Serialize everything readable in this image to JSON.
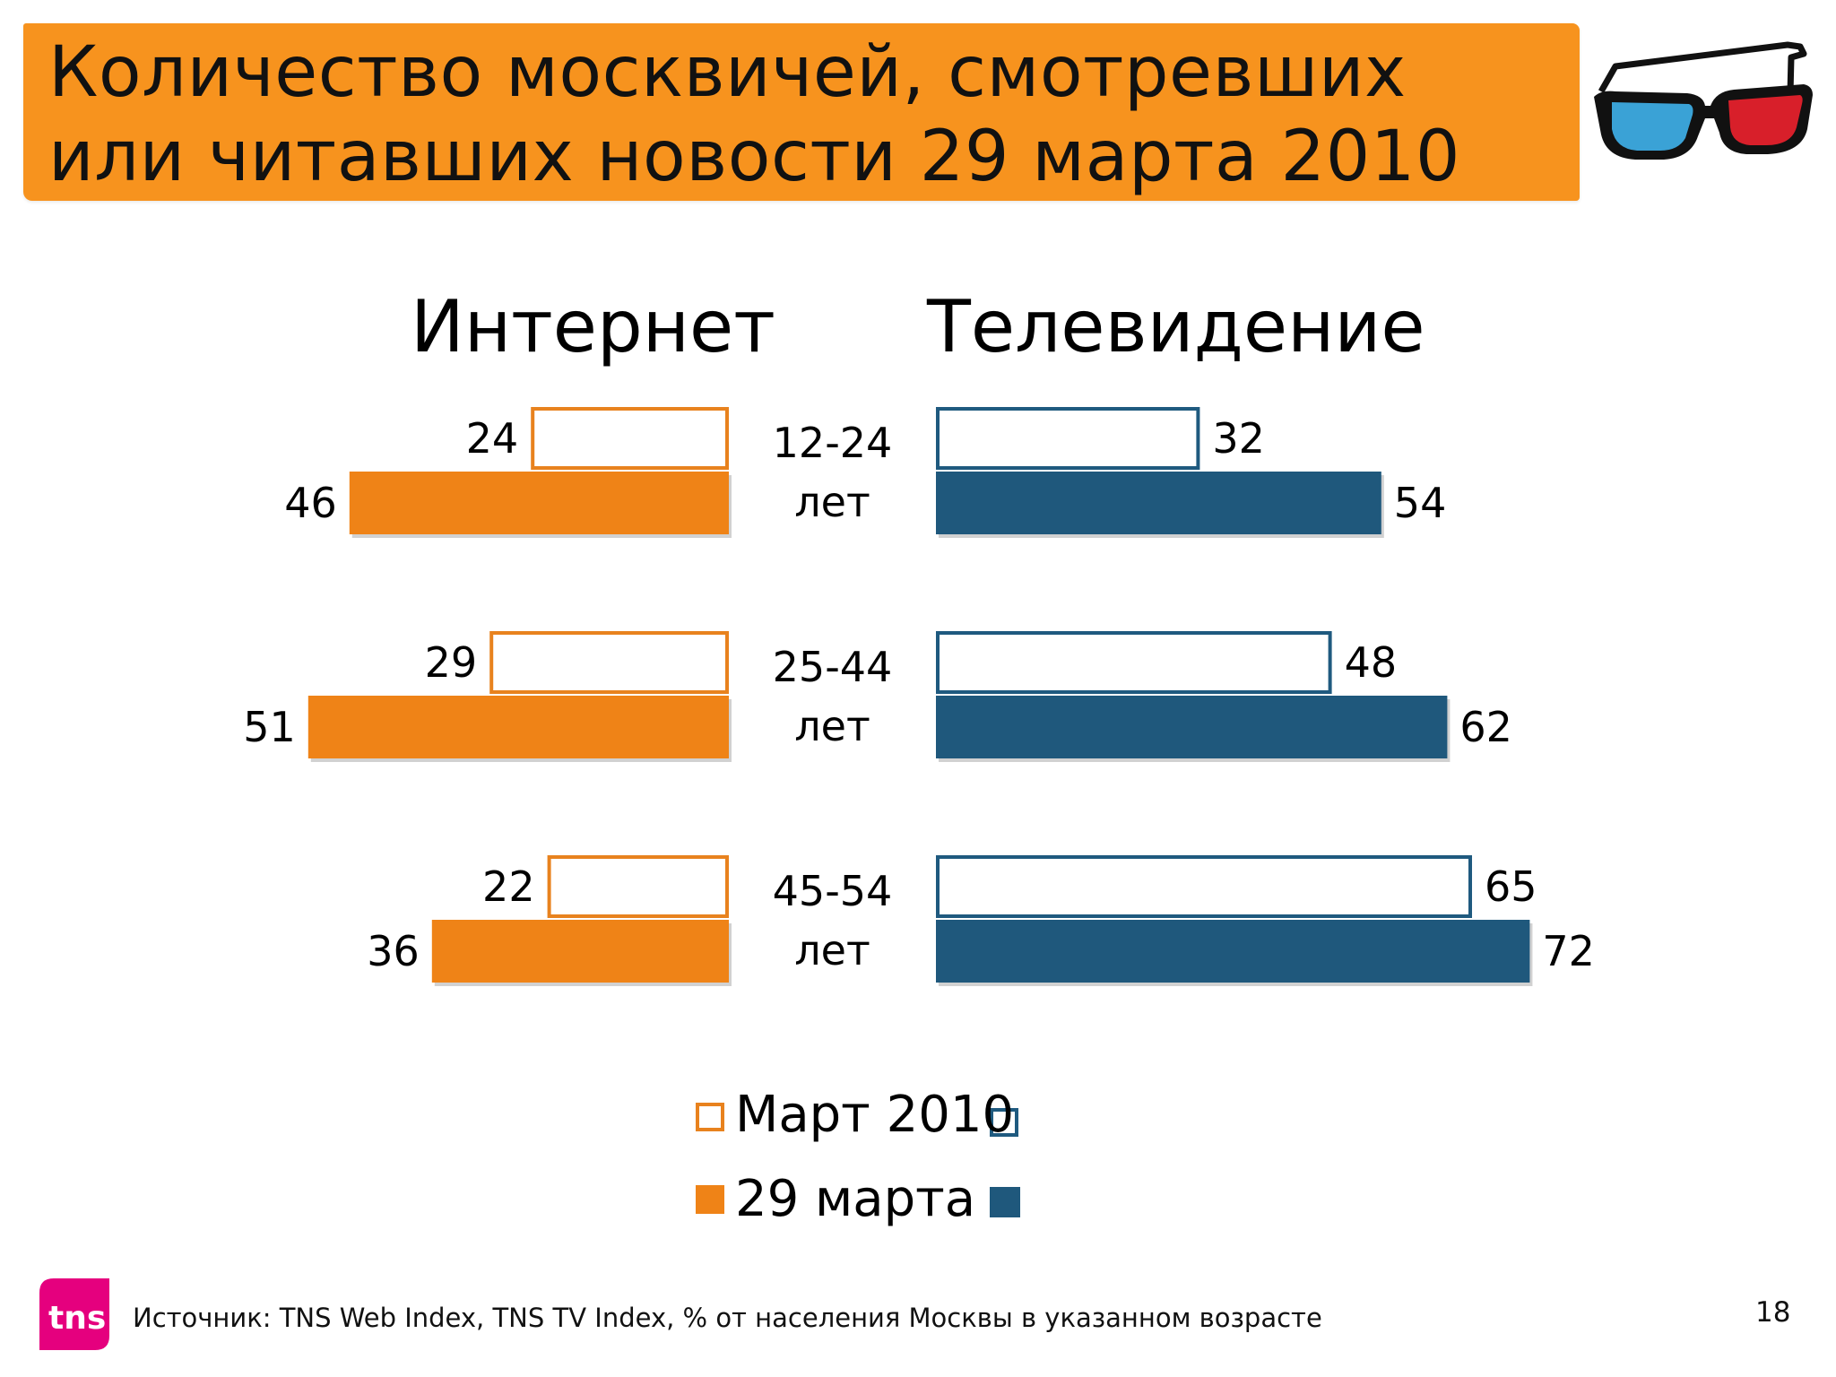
{
  "title": "Количество москвичей, смотревших или читавших новости 29 марта 2010",
  "headers": {
    "internet": "Интернет",
    "tv": "Телевидение"
  },
  "colors": {
    "banner": "#f7931e",
    "internet_outline": "#e8821e",
    "internet_fill": "#ef8317",
    "tv_outline": "#1f5a7f",
    "tv_fill": "#1f587c"
  },
  "chart_data": {
    "type": "bar",
    "orientation": "horizontal",
    "layout": "butterfly",
    "categories": [
      "12-24 лет",
      "25-44 лет",
      "45-54 лет"
    ],
    "panels": [
      {
        "name": "Интернет",
        "series": [
          {
            "name": "Март 2010",
            "style": "outline",
            "values": [
              24,
              29,
              22
            ]
          },
          {
            "name": "29 марта",
            "style": "filled",
            "values": [
              46,
              51,
              36
            ]
          }
        ]
      },
      {
        "name": "Телевидение",
        "series": [
          {
            "name": "Март 2010",
            "style": "outline",
            "values": [
              32,
              48,
              65
            ]
          },
          {
            "name": "29 марта",
            "style": "filled",
            "values": [
              54,
              62,
              72
            ]
          }
        ]
      }
    ],
    "legend": [
      "Март 2010",
      "29 марта"
    ],
    "legend_position": "bottom-center",
    "grid": false
  },
  "age_labels": [
    {
      "range": "12-24",
      "unit": "лет"
    },
    {
      "range": "25-44",
      "unit": "лет"
    },
    {
      "range": "45-54",
      "unit": "лет"
    }
  ],
  "footer": {
    "logo_text": "tns",
    "source": "Источник: TNS Web Index, TNS TV Index, % от населения Москвы в указанном возрасте",
    "page": "18"
  }
}
